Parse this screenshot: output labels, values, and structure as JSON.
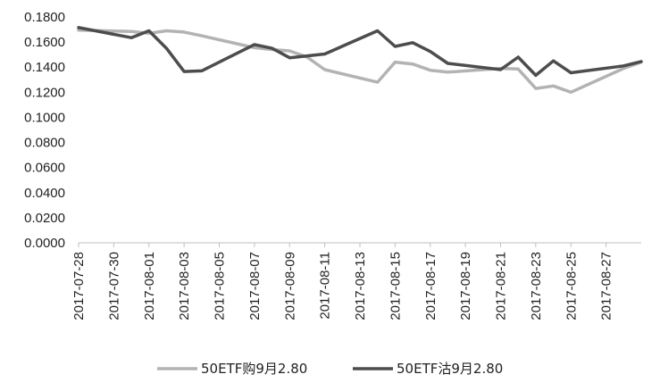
{
  "chart_data": {
    "type": "line",
    "title": "",
    "xlabel": "",
    "ylabel": "",
    "ylim": [
      0,
      0.18
    ],
    "yticks": [
      "0.0000",
      "0.0200",
      "0.0400",
      "0.0600",
      "0.0800",
      "0.1000",
      "0.1200",
      "0.1400",
      "0.1600",
      "0.1800"
    ],
    "grid": false,
    "legend_position": "bottom",
    "x": [
      "2017-07-28",
      "2017-07-31",
      "2017-08-01",
      "2017-08-02",
      "2017-08-03",
      "2017-08-04",
      "2017-08-07",
      "2017-08-08",
      "2017-08-09",
      "2017-08-10",
      "2017-08-11",
      "2017-08-14",
      "2017-08-15",
      "2017-08-16",
      "2017-08-17",
      "2017-08-18",
      "2017-08-21",
      "2017-08-22",
      "2017-08-23",
      "2017-08-24",
      "2017-08-25",
      "2017-08-28",
      "2017-08-29"
    ],
    "x_tick_labels": [
      "2017-07-28",
      "2017-07-30",
      "2017-08-01",
      "2017-08-03",
      "2017-08-05",
      "2017-08-07",
      "2017-08-09",
      "2017-08-11",
      "2017-08-13",
      "2017-08-15",
      "2017-08-17",
      "2017-08-19",
      "2017-08-21",
      "2017-08-23",
      "2017-08-25",
      "2017-08-27"
    ],
    "x_tick_values": [
      "2017-07-28",
      "2017-07-30",
      "2017-08-01",
      "2017-08-03",
      "2017-08-05",
      "2017-08-07",
      "2017-08-09",
      "2017-08-11",
      "2017-08-13",
      "2017-08-15",
      "2017-08-17",
      "2017-08-19",
      "2017-08-21",
      "2017-08-23",
      "2017-08-25",
      "2017-08-27"
    ],
    "x_range": [
      "2017-07-28",
      "2017-08-29"
    ],
    "series": [
      {
        "name": "50ETF购9月2.80",
        "color": "#b3b3b3",
        "values": [
          0.1695,
          0.1685,
          0.167,
          0.169,
          0.168,
          0.165,
          0.1555,
          0.154,
          0.153,
          0.148,
          0.138,
          0.128,
          0.144,
          0.1425,
          0.1375,
          0.136,
          0.139,
          0.1385,
          0.123,
          0.125,
          0.12,
          0.139,
          0.144
        ]
      },
      {
        "name": "50ETF沽9月2.80",
        "color": "#4d4d4d",
        "values": [
          0.1715,
          0.1635,
          0.169,
          0.155,
          0.1365,
          0.137,
          0.158,
          0.155,
          0.1475,
          0.149,
          0.1505,
          0.169,
          0.1565,
          0.1595,
          0.1525,
          0.143,
          0.138,
          0.148,
          0.1335,
          0.145,
          0.1355,
          0.141,
          0.1445
        ]
      }
    ]
  }
}
